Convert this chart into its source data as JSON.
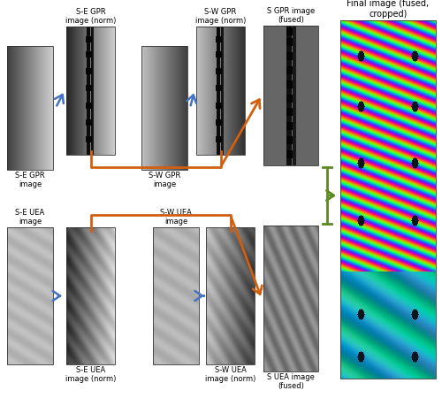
{
  "bg_color": "#ffffff",
  "arrow_blue": "#4472C4",
  "arrow_orange": "#D06010",
  "arrow_green": "#5A8A20",
  "labels": {
    "se_gpr": "S-E GPR\nimage",
    "se_gpr_norm": "S-E GPR\nimage (norm)",
    "sw_gpr": "S-W GPR\nimage",
    "sw_gpr_norm": "S-W GPR\nimage (norm)",
    "s_gpr_fused": "S GPR image\n(fused)",
    "final": "Final image (fused,\ncropped)",
    "se_uea": "S-E UEA\nimage",
    "se_uea_norm": "S-E UEA\nimage (norm)",
    "sw_uea": "S-W UEA\nimage",
    "sw_uea_norm": "S-W UEA\nimage (norm)",
    "s_uea_fused": "S UEA image\n(fused)"
  },
  "fontsize_label": 6.0,
  "fontsize_final": 7.0
}
